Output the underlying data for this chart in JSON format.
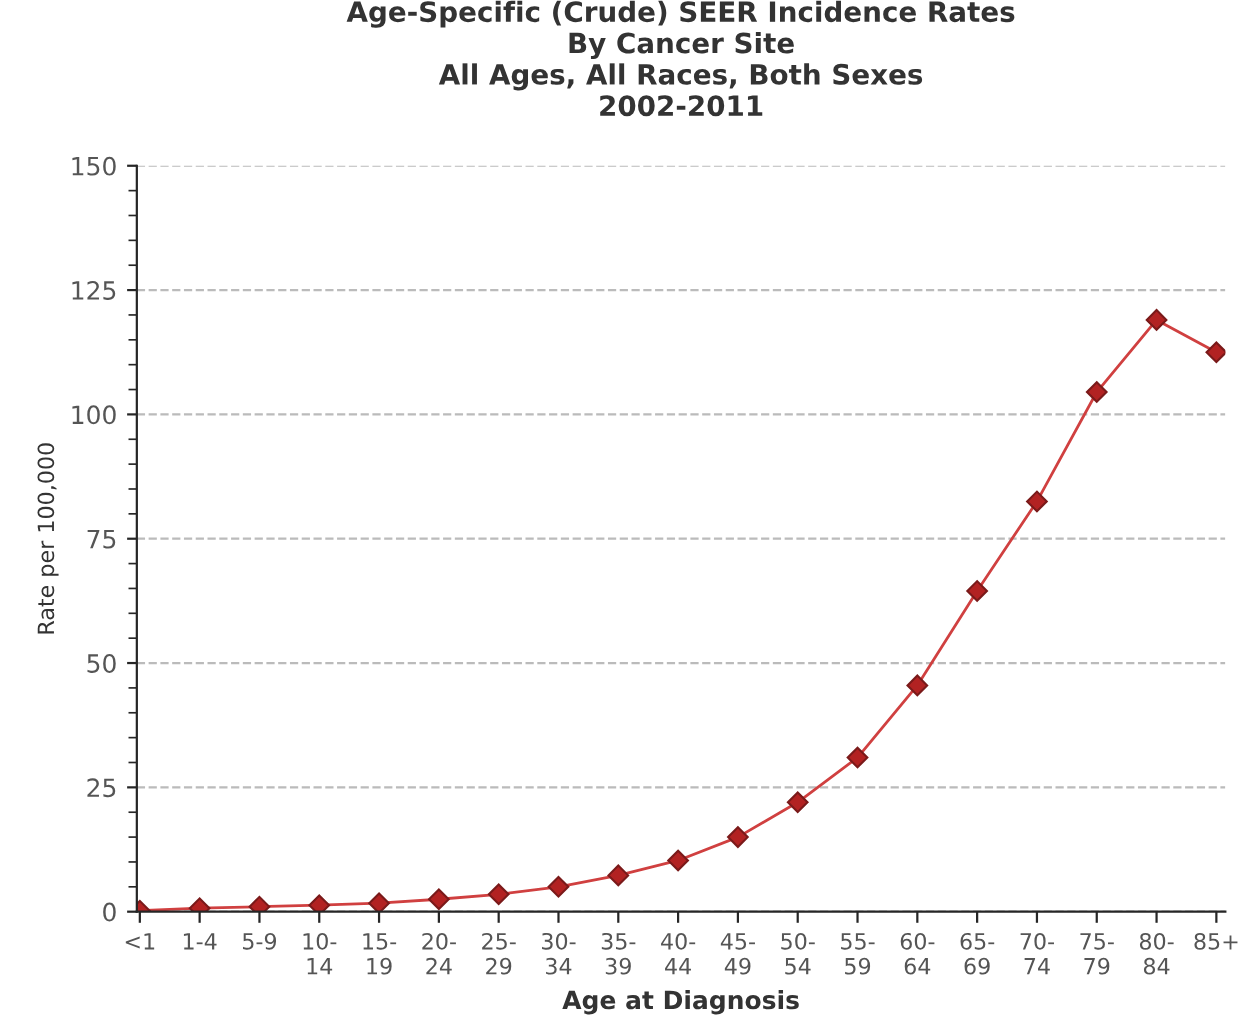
{
  "chart_data": {
    "type": "line",
    "title": "Age-Specific (Crude) SEER Incidence Rates\nBy Cancer Site\nAll Ages, All Races, Both Sexes\n2002-2011",
    "xlabel": "Age at Diagnosis",
    "ylabel": "Rate per 100,000",
    "categories": [
      "<1",
      "1-4",
      "5-9",
      "10-\n14",
      "15-\n19",
      "20-\n24",
      "25-\n29",
      "30-\n34",
      "35-\n39",
      "40-\n44",
      "45-\n49",
      "50-\n54",
      "55-\n59",
      "60-\n64",
      "65-\n69",
      "70-\n74",
      "75-\n79",
      "80-\n84",
      "85+"
    ],
    "series": [
      {
        "color": "#d04040",
        "values": [
          0.2,
          0.7,
          1.0,
          1.3,
          1.7,
          2.5,
          3.5,
          5.0,
          7.3,
          10.3,
          15,
          22,
          31,
          45.5,
          64.5,
          82.5,
          104.5,
          119,
          112.5
        ]
      }
    ],
    "ylim": [
      0,
      150
    ],
    "yticks": [
      0,
      25,
      50,
      75,
      100,
      125,
      150
    ],
    "grid": "y",
    "marker": "diamond",
    "line_style": "solid"
  }
}
